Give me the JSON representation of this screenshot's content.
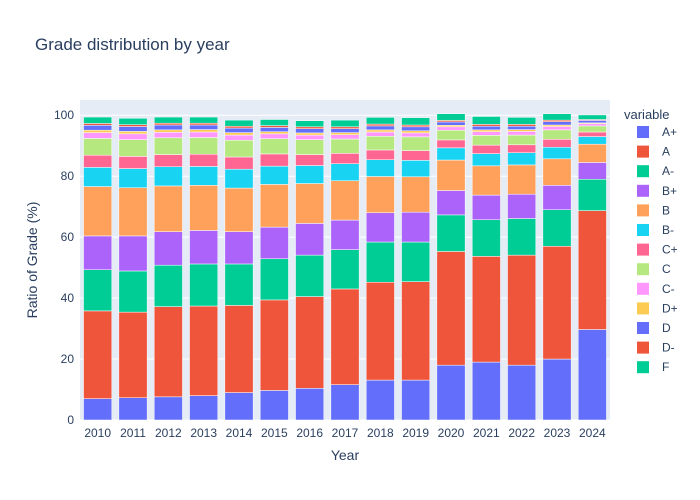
{
  "chart_data": {
    "type": "bar",
    "stacked": true,
    "title": "Grade distribution by year",
    "xlabel": "Year",
    "ylabel": "Ratio of Grade (%)",
    "ylim": [
      0,
      105
    ],
    "yticks": [
      0,
      20,
      40,
      60,
      80,
      100
    ],
    "grid": true,
    "legend": {
      "title": "variable",
      "position": "right"
    },
    "categories": [
      "2010",
      "2011",
      "2012",
      "2013",
      "2014",
      "2015",
      "2016",
      "2017",
      "2018",
      "2019",
      "2020",
      "2021",
      "2022",
      "2023",
      "2024"
    ],
    "series": [
      {
        "name": "A+",
        "color": "#636efa",
        "values": [
          7.0,
          7.3,
          7.6,
          8.0,
          9.0,
          9.7,
          10.4,
          11.6,
          13.1,
          13.1,
          18.0,
          19.0,
          18.0,
          20.0,
          29.7
        ]
      },
      {
        "name": "A",
        "color": "#EF553B",
        "values": [
          28.8,
          28.1,
          29.6,
          29.4,
          28.6,
          29.7,
          30.1,
          31.4,
          32.1,
          32.3,
          37.3,
          34.7,
          36.1,
          37.0,
          39.0
        ]
      },
      {
        "name": "A-",
        "color": "#00cc96",
        "values": [
          13.5,
          13.5,
          13.6,
          13.8,
          13.6,
          13.5,
          13.6,
          12.9,
          13.2,
          13.0,
          12.0,
          12.0,
          12.0,
          12.0,
          10.3
        ]
      },
      {
        "name": "B+",
        "color": "#ab63fa",
        "values": [
          11.1,
          11.5,
          11.0,
          11.0,
          10.6,
          10.4,
          10.4,
          9.7,
          9.6,
          9.8,
          8.0,
          8.1,
          8.0,
          8.0,
          5.5
        ]
      },
      {
        "name": "B",
        "color": "#FFA15A",
        "values": [
          16.2,
          15.8,
          15.0,
          14.8,
          14.3,
          14.0,
          13.1,
          12.9,
          11.9,
          11.6,
          10.0,
          9.6,
          9.6,
          8.7,
          6.0
        ]
      },
      {
        "name": "B-",
        "color": "#19d3f3",
        "values": [
          6.3,
          6.3,
          6.3,
          6.2,
          6.2,
          6.0,
          5.9,
          5.6,
          5.5,
          5.4,
          4.0,
          4.0,
          4.0,
          3.8,
          2.5
        ]
      },
      {
        "name": "C+",
        "color": "#FF6692",
        "values": [
          4.0,
          4.0,
          4.0,
          4.0,
          4.0,
          4.0,
          3.6,
          3.4,
          3.2,
          3.2,
          2.6,
          2.8,
          2.6,
          2.6,
          1.5
        ]
      },
      {
        "name": "C",
        "color": "#B6E880",
        "values": [
          5.5,
          5.5,
          5.5,
          5.5,
          5.5,
          5.0,
          4.9,
          4.7,
          4.5,
          4.5,
          3.2,
          3.2,
          3.2,
          3.1,
          2.0
        ]
      },
      {
        "name": "C-",
        "color": "#FF97FF",
        "values": [
          1.9,
          1.9,
          1.8,
          1.8,
          1.7,
          1.6,
          1.5,
          1.4,
          1.4,
          1.3,
          1.1,
          1.2,
          1.2,
          1.1,
          0.7
        ]
      },
      {
        "name": "D+",
        "color": "#FECB52",
        "values": [
          0.8,
          0.8,
          0.8,
          0.8,
          0.8,
          0.7,
          0.7,
          0.7,
          0.7,
          0.7,
          0.5,
          0.6,
          0.6,
          0.5,
          0.3
        ]
      },
      {
        "name": "D",
        "color": "#636efa",
        "values": [
          1.6,
          1.6,
          1.6,
          1.5,
          1.5,
          1.4,
          1.4,
          1.3,
          1.3,
          1.3,
          1.1,
          1.2,
          1.1,
          1.1,
          0.8
        ]
      },
      {
        "name": "D-",
        "color": "#EF553B",
        "values": [
          0.6,
          0.6,
          0.6,
          0.6,
          0.6,
          0.6,
          0.6,
          0.6,
          0.6,
          0.6,
          0.5,
          0.6,
          0.6,
          0.5,
          0.3
        ]
      },
      {
        "name": "F",
        "color": "#00cc96",
        "values": [
          2.1,
          2.1,
          2.0,
          2.0,
          2.0,
          2.0,
          2.0,
          2.2,
          2.2,
          2.4,
          2.2,
          2.6,
          2.3,
          2.1,
          1.5
        ]
      }
    ]
  },
  "colors": {
    "plot_background": "#e5ecf6",
    "gridline": "#ffffff",
    "text": "#2a3f5f"
  }
}
